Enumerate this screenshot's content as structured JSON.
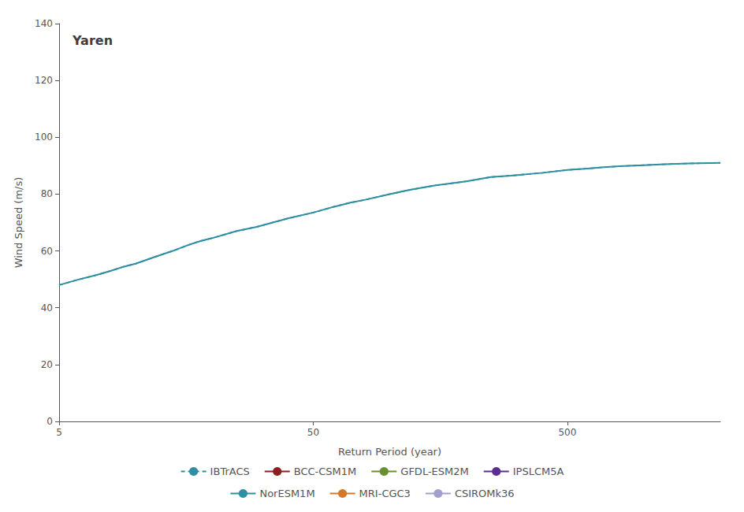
{
  "chart_data": {
    "type": "line",
    "title": "Yaren",
    "xlabel": "Return Period (year)",
    "ylabel": "Wind Speed (m/s)",
    "log": "x",
    "grid": false,
    "legend": "bottom",
    "xlim": [
      5,
      2000
    ],
    "xticks": [
      5,
      50,
      500
    ],
    "ylim": [
      0,
      140
    ],
    "yticks": [
      0,
      20,
      40,
      60,
      80,
      100,
      120,
      140
    ],
    "x": [
      5,
      6,
      7,
      8,
      9,
      10,
      12,
      14,
      16,
      18,
      20,
      25,
      30,
      40,
      50,
      60,
      70,
      80,
      100,
      120,
      150,
      200,
      250,
      300,
      400,
      500,
      600,
      700,
      800,
      1000,
      1200,
      1500,
      2000
    ],
    "series": [
      {
        "name": "IBTrACS",
        "color": "#2e8fa3",
        "line_style": "dashed",
        "values": [
          48,
          50,
          51.5,
          53,
          54.5,
          55.5,
          58,
          60,
          62,
          63.5,
          64.5,
          67,
          68.5,
          71.5,
          73.5,
          75.5,
          77,
          78,
          80,
          81.5,
          83,
          84.5,
          86,
          86.5,
          87.5,
          88.5,
          89,
          89.5,
          89.8,
          90.2,
          90.5,
          90.8,
          91.0
        ]
      },
      {
        "name": "BCC-CSM1M",
        "color": "#8b2020",
        "line_style": "solid",
        "values": [
          null,
          null,
          null,
          null,
          null,
          null,
          null,
          null,
          null,
          null,
          null,
          null,
          null,
          null,
          null,
          null,
          null,
          null,
          null,
          null,
          null,
          null,
          null,
          null,
          null,
          null,
          null,
          null,
          null,
          null,
          null,
          null,
          null
        ]
      },
      {
        "name": "GFDL-ESM2M",
        "color": "#6a8f2e",
        "line_style": "solid",
        "values": [
          null,
          null,
          null,
          null,
          null,
          null,
          null,
          null,
          null,
          null,
          null,
          null,
          null,
          null,
          null,
          null,
          null,
          null,
          null,
          null,
          null,
          null,
          null,
          null,
          null,
          null,
          null,
          null,
          null,
          null,
          null,
          null,
          null
        ]
      },
      {
        "name": "IPSLCM5A",
        "color": "#5c2d8f",
        "line_style": "solid",
        "values": [
          null,
          null,
          null,
          null,
          null,
          null,
          null,
          null,
          null,
          null,
          null,
          null,
          null,
          null,
          null,
          null,
          null,
          null,
          null,
          null,
          null,
          null,
          null,
          null,
          null,
          null,
          null,
          null,
          null,
          null,
          null,
          null,
          null
        ]
      },
      {
        "name": "NorESM1M",
        "color": "#2e8fa3",
        "line_style": "solid",
        "values": [
          48,
          50,
          51.5,
          53,
          54.5,
          55.5,
          58,
          60,
          62,
          63.5,
          64.5,
          67,
          68.5,
          71.5,
          73.5,
          75.5,
          77,
          78,
          80,
          81.5,
          83,
          84.5,
          86,
          86.5,
          87.5,
          88.5,
          89,
          89.5,
          89.8,
          90.2,
          90.5,
          90.8,
          91.0
        ]
      },
      {
        "name": "MRI-CGC3",
        "color": "#d4782a",
        "line_style": "solid",
        "values": [
          null,
          null,
          null,
          null,
          null,
          null,
          null,
          null,
          null,
          null,
          null,
          null,
          null,
          null,
          null,
          null,
          null,
          null,
          null,
          null,
          null,
          null,
          null,
          null,
          null,
          null,
          null,
          null,
          null,
          null,
          null,
          null,
          null
        ]
      },
      {
        "name": "CSIROMk36",
        "color": "#a0a0d0",
        "line_style": "solid",
        "values": [
          null,
          null,
          null,
          null,
          null,
          null,
          null,
          null,
          null,
          null,
          null,
          null,
          null,
          null,
          null,
          null,
          null,
          null,
          null,
          null,
          null,
          null,
          null,
          null,
          null,
          null,
          null,
          null,
          null,
          null,
          null,
          null,
          null
        ]
      }
    ]
  }
}
